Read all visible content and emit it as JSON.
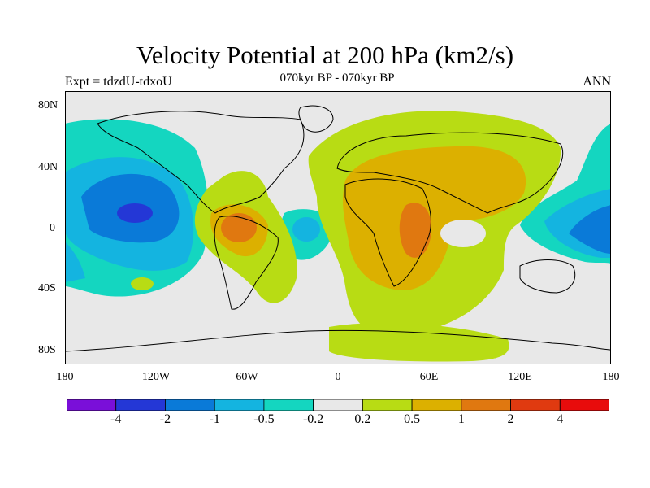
{
  "title": "Velocity Potential at 200 hPa (km2/s)",
  "subtitle": "070kyr BP - 070kyr BP",
  "experiment_label": "Expt = tdzdU-tdxoU",
  "season_label": "ANN",
  "lat_labels": [
    "80N",
    "40N",
    "0",
    "40S",
    "80S"
  ],
  "lon_labels": [
    "180",
    "120W",
    "60W",
    "0",
    "60E",
    "120E",
    "180"
  ],
  "colorbar": {
    "labels": [
      "-4",
      "-2",
      "-1",
      "-0.5",
      "-0.2",
      "0.2",
      "0.5",
      "1",
      "2",
      "4"
    ],
    "colors": [
      "#7a0fd9",
      "#2437d6",
      "#0a7ad8",
      "#14b4e0",
      "#14d6c0",
      "#e8e8e8",
      "#b8dc14",
      "#dcb000",
      "#e07810",
      "#e03a10",
      "#e80c0c"
    ]
  },
  "colors": {
    "land_outline": "#000000",
    "ocean_neutral": "#e8e8e8"
  }
}
